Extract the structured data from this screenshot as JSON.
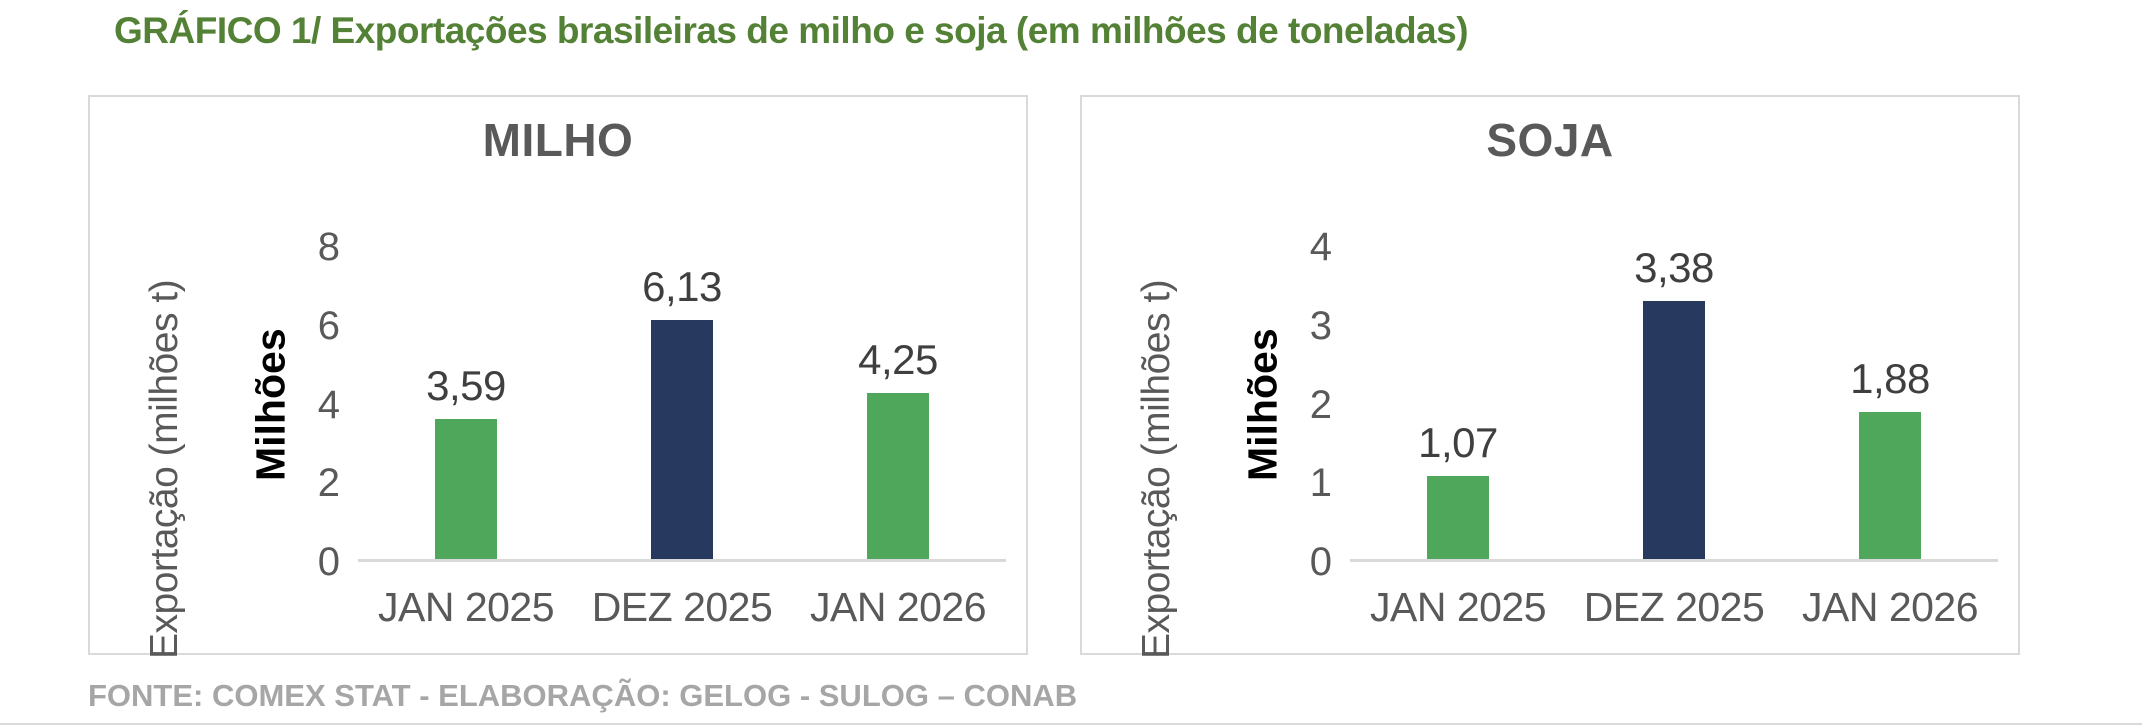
{
  "page": {
    "title": "GRÁFICO 1/ Exportações brasileiras de milho e soja (em milhões de toneladas)",
    "footer": "FONTE: COMEX STAT - ELABORAÇÃO: GELOG - SULOG – CONAB"
  },
  "colors": {
    "title_green": "#538135",
    "chart_title": "#595959",
    "axis_text": "#595959",
    "value_label": "#3F3F3F",
    "bar_green": "#4EA75A",
    "bar_navy": "#27395E",
    "panel_border": "#D9D9D9",
    "axis_line": "#D9D9D9",
    "footer_gray": "#A6A6A6"
  },
  "chart_data": [
    {
      "type": "bar",
      "title": "MILHO",
      "ylabel": "Exportação (milhões t)",
      "ylabel_units": "Milhões",
      "xlabel": "",
      "categories": [
        "JAN 2025",
        "DEZ 2025",
        "JAN 2026"
      ],
      "values": [
        3.59,
        6.13,
        4.25
      ],
      "value_labels": [
        "3,59",
        "6,13",
        "4,25"
      ],
      "bar_colors": [
        "green",
        "navy",
        "green"
      ],
      "ylim": [
        0,
        8
      ],
      "yticks": [
        0,
        2,
        4,
        6,
        8
      ],
      "grid": false,
      "legend": false
    },
    {
      "type": "bar",
      "title": "SOJA",
      "ylabel": "Exportação (milhões t)",
      "ylabel_units": "Milhões",
      "xlabel": "",
      "categories": [
        "JAN 2025",
        "DEZ 2025",
        "JAN 2026"
      ],
      "values": [
        1.07,
        3.38,
        1.88
      ],
      "value_labels": [
        "1,07",
        "3,38",
        "1,88"
      ],
      "bar_colors": [
        "green",
        "navy",
        "green"
      ],
      "ylim": [
        0,
        4
      ],
      "yticks": [
        0,
        1,
        2,
        3,
        4
      ],
      "grid": false,
      "legend": false
    }
  ]
}
